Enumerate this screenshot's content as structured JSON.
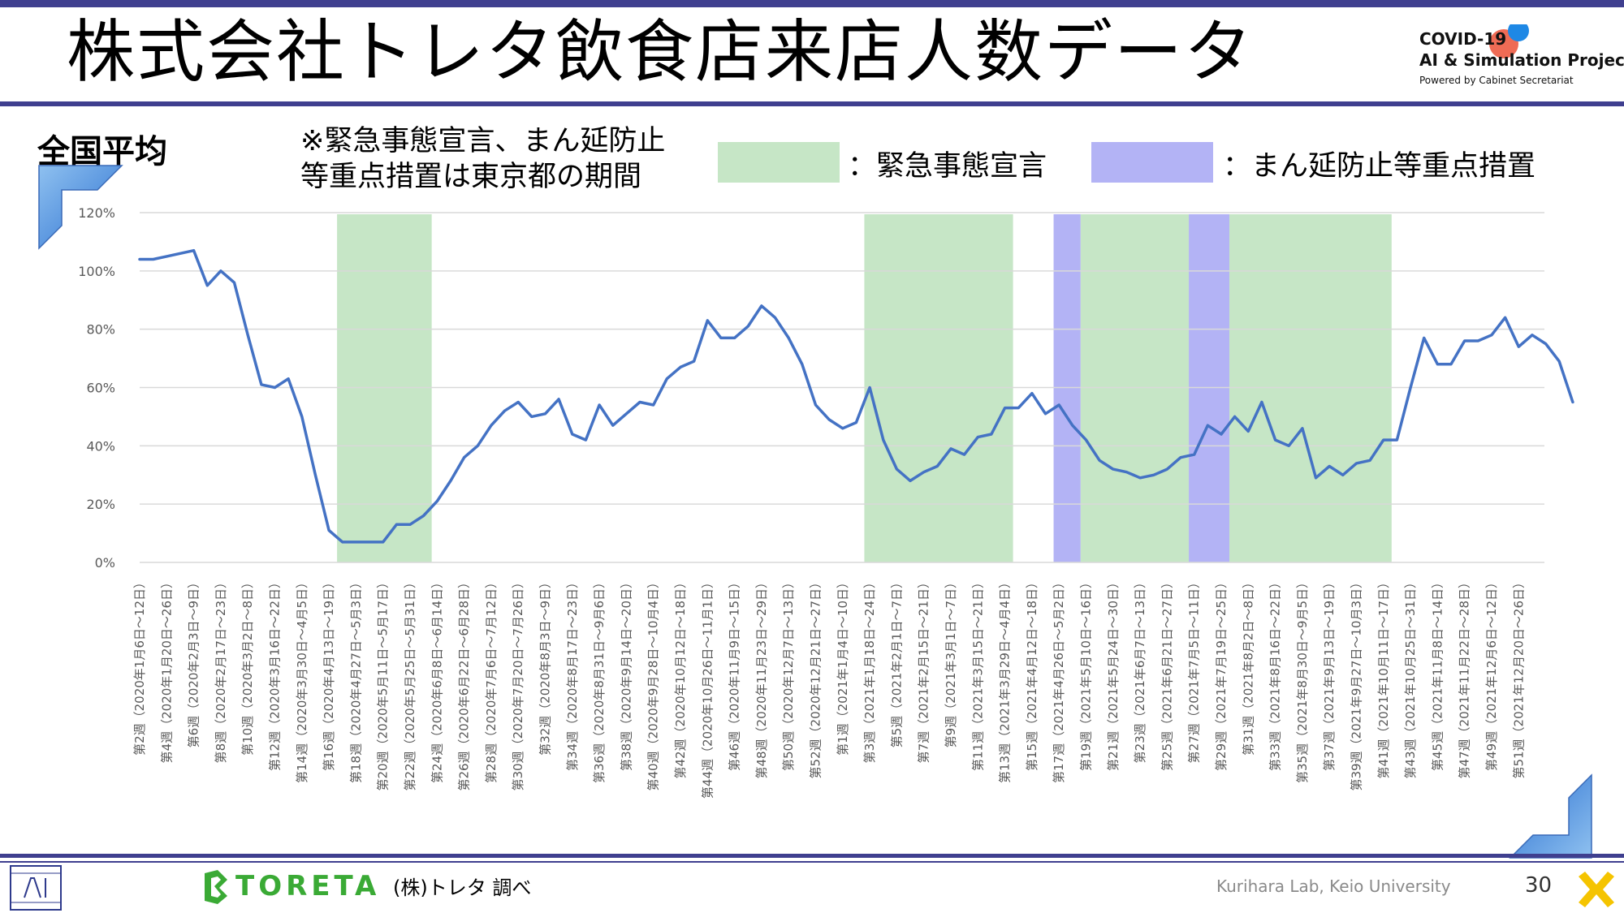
{
  "title": "株式会社トレタ飲食店来店人数データ",
  "logo": {
    "line1": "COVID-19",
    "line2": "AI & Simulation Project",
    "line3": "Powered by Cabinet Secretariat"
  },
  "subtitle": "全国平均",
  "note": "※緊急事態宣言、まん延防止\n等重点措置は東京都の期間",
  "legend": [
    {
      "label": "：緊急事態宣言",
      "color": "#c6e6c6"
    },
    {
      "label": "：まん延防止等重点措置",
      "color": "#b3b3f5"
    }
  ],
  "footer": {
    "source": "(株)トレタ 調べ",
    "brand": "TORETA",
    "lab": "Kurihara Lab, Keio University",
    "page": "30"
  },
  "chart_data": {
    "type": "line",
    "y_ticks": [
      "0%",
      "20%",
      "40%",
      "60%",
      "80%",
      "100%",
      "120%"
    ],
    "ylim": [
      0,
      120
    ],
    "grid": true,
    "x_labels": [
      "第2週（2020年1月6日～12日）",
      "第4週（2020年1月20日～26日）",
      "第6週（2020年2月3日～9日）",
      "第8週（2020年2月17日～23日）",
      "第10週（2020年3月2日～8日）",
      "第12週（2020年3月16日～22日）",
      "第14週（2020年3月30日～4月5日）",
      "第16週（2020年4月13日～19日）",
      "第18週（2020年4月27日～5月3日）",
      "第20週（2020年5月11日～5月17日）",
      "第22週（2020年5月25日～5月31日）",
      "第24週（2020年6月8日～6月14日）",
      "第26週（2020年6月22日～6月28日）",
      "第28週（2020年7月6日～7月12日）",
      "第30週（2020年7月20日～7月26日）",
      "第32週（2020年8月3日～9日）",
      "第34週（2020年8月17日～23日）",
      "第36週（2020年8月31日～9月6日）",
      "第38週（2020年9月14日～20日）",
      "第40週（2020年9月28日～10月4日）",
      "第42週（2020年10月12日～18日）",
      "第44週（2020年10月26日～11月1日）",
      "第46週（2020年11月9日～15日）",
      "第48週（2020年11月23日～29日）",
      "第50週（2020年12月7日～13日）",
      "第52週（2020年12月21日～27日）",
      "第1週（2021年1月4日～10日）",
      "第3週（2021年1月18日～24日）",
      "第5週（2021年2月1日～7日）",
      "第7週（2021年2月15日～21日）",
      "第9週（2021年3月1日～7日）",
      "第11週（2021年3月15日～21日）",
      "第13週（2021年3月29日～4月4日）",
      "第15週（2021年4月12日～18日）",
      "第17週（2021年4月26日～5月2日）",
      "第19週（2021年5月10日～16日）",
      "第21週（2021年5月24日～30日）",
      "第23週（2021年6月7日～13日）",
      "第25週（2021年6月21日～27日）",
      "第27週（2021年7月5日～11日）",
      "第29週（2021年7月19日～25日）",
      "第31週（2021年8月2日～8日）",
      "第33週（2021年8月16日～22日）",
      "第35週（2021年8月30日～9月5日）",
      "第37週（2021年9月13日～19日）",
      "第39週（2021年9月27日～10月3日）",
      "第41週（2021年10月11日～17日）",
      "第43週（2021年10月25日～31日）",
      "第45週（2021年11月8日～14日）",
      "第47週（2021年11月22日～28日）",
      "第49週（2021年12月6日～12日）",
      "第51週（2021年12月20日～26日）"
    ],
    "series": [
      {
        "values": [
          104,
          104,
          105,
          106,
          107,
          95,
          100,
          96,
          78,
          61,
          60,
          63,
          50,
          30,
          11,
          7,
          7,
          7,
          7,
          13,
          13,
          16,
          21,
          28,
          36,
          40,
          47,
          52,
          55,
          50,
          51,
          56,
          44,
          42,
          54,
          47,
          51,
          55,
          54,
          63,
          67,
          69,
          83,
          77,
          77,
          81,
          88,
          84,
          77,
          68,
          54,
          49,
          46,
          48,
          60,
          42,
          32,
          28,
          31,
          33,
          39,
          37,
          43,
          44,
          53,
          53,
          58,
          51,
          54,
          47,
          42,
          35,
          32,
          31,
          29,
          30,
          32,
          36,
          37,
          47,
          44,
          50,
          45,
          55,
          42,
          40,
          46,
          29,
          33,
          30,
          34,
          35,
          42,
          42,
          60,
          77,
          68,
          68,
          76,
          76,
          78,
          84,
          74,
          78,
          75,
          69,
          55
        ],
        "color": "#4472c4"
      }
    ],
    "shaded_periods": [
      {
        "kind": "緊急事態宣言",
        "from_week_index": 14.6,
        "to_week_index": 21.6
      },
      {
        "kind": "緊急事態宣言",
        "from_week_index": 53.6,
        "to_week_index": 64.6
      },
      {
        "kind": "まん延防止等重点措置",
        "from_week_index": 67.6,
        "to_week_index": 69.6
      },
      {
        "kind": "緊急事態宣言",
        "from_week_index": 69.6,
        "to_week_index": 77.6
      },
      {
        "kind": "まん延防止等重点措置",
        "from_week_index": 77.6,
        "to_week_index": 80.6
      },
      {
        "kind": "緊急事態宣言",
        "from_week_index": 80.6,
        "to_week_index": 92.6
      }
    ]
  }
}
